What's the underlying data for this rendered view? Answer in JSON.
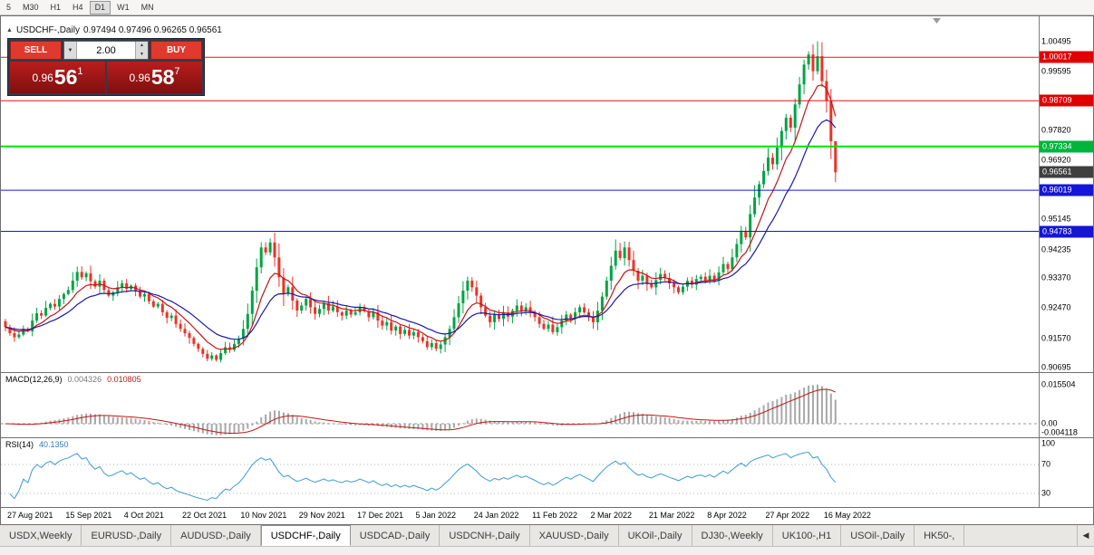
{
  "toolbar": {
    "periods": [
      "5",
      "M30",
      "H1",
      "H4",
      "D1",
      "W1",
      "MN"
    ],
    "active": "D1"
  },
  "chart": {
    "marker_icon": "▲",
    "symbol_period": "USDCHF-,Daily",
    "ohlc": "0.97494 0.97496 0.96265 0.96561"
  },
  "trade_panel": {
    "sell_label": "SELL",
    "buy_label": "BUY",
    "volume": "2.00",
    "dropdown_icon": "▼",
    "spin_up_icon": "▲",
    "spin_down_icon": "▼",
    "sell_price": {
      "base": "0.96",
      "pips": "56",
      "sup": "1"
    },
    "buy_price": {
      "base": "0.96",
      "pips": "58",
      "sup": "7"
    }
  },
  "colors": {
    "bull": "#00A443",
    "bear": "#EA3327",
    "ma_fast": "#C41414",
    "ma_slow": "#1A1AA6",
    "macd_hist": "#A8A8A8",
    "macd_signal": "#C41414",
    "rsi_line": "#3E9AD5"
  },
  "chart_data": {
    "type": "candlestick",
    "symbol": "USDCHF",
    "timeframe": "Daily",
    "title": "USDCHF-,Daily",
    "last_candle": {
      "open": 0.97494,
      "high": 0.97496,
      "low": 0.96265,
      "close": 0.96561
    },
    "current_price": 0.96561,
    "price_range": [
      0.9055,
      1.0125
    ],
    "closes": [
      0.919,
      0.9172,
      0.916,
      0.9168,
      0.9185,
      0.9178,
      0.921,
      0.9232,
      0.9225,
      0.9248,
      0.926,
      0.9252,
      0.9275,
      0.929,
      0.9302,
      0.933,
      0.9356,
      0.934,
      0.9352,
      0.9328,
      0.9312,
      0.933,
      0.9302,
      0.9285,
      0.9295,
      0.931,
      0.9322,
      0.9305,
      0.9315,
      0.9298,
      0.9282,
      0.929,
      0.9268,
      0.9252,
      0.926,
      0.9235,
      0.9218,
      0.9225,
      0.92,
      0.9185,
      0.9172,
      0.9158,
      0.914,
      0.9125,
      0.911,
      0.9095,
      0.9105,
      0.9092,
      0.9112,
      0.913,
      0.9122,
      0.914,
      0.9155,
      0.9185,
      0.923,
      0.93,
      0.937,
      0.943,
      0.9415,
      0.9445,
      0.94,
      0.934,
      0.929,
      0.931,
      0.927,
      0.924,
      0.9255,
      0.9275,
      0.925,
      0.923,
      0.9245,
      0.9262,
      0.924,
      0.9252,
      0.9235,
      0.9225,
      0.924,
      0.9228,
      0.9235,
      0.925,
      0.9238,
      0.922,
      0.9235,
      0.921,
      0.9195,
      0.9205,
      0.918,
      0.9192,
      0.917,
      0.9182,
      0.9165,
      0.9175,
      0.916,
      0.9148,
      0.913,
      0.9142,
      0.9125,
      0.9138,
      0.916,
      0.9185,
      0.922,
      0.9262,
      0.93,
      0.933,
      0.931,
      0.9285,
      0.925,
      0.9225,
      0.9205,
      0.9228,
      0.9215,
      0.9235,
      0.9222,
      0.924,
      0.9255,
      0.9238,
      0.925,
      0.9235,
      0.922,
      0.92,
      0.9185,
      0.9198,
      0.9175,
      0.919,
      0.921,
      0.9228,
      0.9215,
      0.9235,
      0.925,
      0.9235,
      0.922,
      0.9205,
      0.924,
      0.9282,
      0.933,
      0.9375,
      0.942,
      0.9398,
      0.943,
      0.9392,
      0.936,
      0.933,
      0.9345,
      0.932,
      0.931,
      0.9332,
      0.935,
      0.9338,
      0.9322,
      0.931,
      0.9295,
      0.9312,
      0.933,
      0.9318,
      0.9335,
      0.9342,
      0.933,
      0.9345,
      0.933,
      0.9355,
      0.938,
      0.9365,
      0.94,
      0.944,
      0.948,
      0.946,
      0.953,
      0.958,
      0.962,
      0.966,
      0.97,
      0.968,
      0.973,
      0.978,
      0.982,
      0.979,
      0.986,
      0.992,
      0.998,
      1.001,
      0.996,
      1.0005,
      0.993,
      0.987,
      0.97494,
      0.96561
    ],
    "high_overrides": {
      "59": 0.9457,
      "138": 0.9448,
      "181": 1.00495
    },
    "low_overrides": {
      "47": 0.9086
    },
    "x_labels": [
      "27 Aug 2021",
      "15 Sep 2021",
      "4 Oct 2021",
      "22 Oct 2021",
      "10 Nov 2021",
      "29 Nov 2021",
      "17 Dec 2021",
      "5 Jan 2022",
      "24 Jan 2022",
      "11 Feb 2022",
      "2 Mar 2022",
      "21 Mar 2022",
      "8 Apr 2022",
      "27 Apr 2022",
      "16 May 2022"
    ],
    "y_axis_labels": [
      {
        "price": 1.00495,
        "label": "1.00495"
      },
      {
        "price": 1.00017,
        "label": "1.00017",
        "box": "#E00000"
      },
      {
        "price": 0.99595,
        "label": "0.99595"
      },
      {
        "price": 0.98709,
        "label": "0.98709",
        "box": "#E00000"
      },
      {
        "price": 0.9782,
        "label": "0.97820"
      },
      {
        "price": 0.97334,
        "label": "0.97334",
        "box": "#00B43C"
      },
      {
        "price": 0.9692,
        "label": "0.96920"
      },
      {
        "price": 0.96561,
        "label": "0.96561",
        "box": "#3F3F3F"
      },
      {
        "price": 0.96019,
        "label": "0.96019",
        "box": "#1515D6"
      },
      {
        "price": 0.95145,
        "label": "0.95145"
      },
      {
        "price": 0.94783,
        "label": "0.94783",
        "box": "#1515D6"
      },
      {
        "price": 0.94235,
        "label": "0.94235"
      },
      {
        "price": 0.9337,
        "label": "0.93370"
      },
      {
        "price": 0.9247,
        "label": "0.92470"
      },
      {
        "price": 0.9157,
        "label": "0.91570"
      },
      {
        "price": 0.90695,
        "label": "0.90695"
      }
    ],
    "hlines": [
      {
        "price": 1.00017,
        "color": "#F01414",
        "width": 1
      },
      {
        "price": 0.98709,
        "color": "#F01414",
        "width": 1
      },
      {
        "price": 0.97334,
        "color": "#00E400",
        "width": 2
      },
      {
        "price": 0.96019,
        "color": "#1414E6",
        "width": 1
      },
      {
        "price": 0.94783,
        "color": "#1414E6",
        "width": 1
      }
    ],
    "indicators": [
      {
        "id": "macd",
        "label": "MACD(12,26,9)",
        "values": [
          {
            "text": "0.004326",
            "color": "#7a7a7a"
          },
          {
            "text": "0.010805",
            "color": "#b22222"
          }
        ],
        "axis": [
          {
            "v": 0.015504,
            "t": "0.015504"
          },
          {
            "v": 0,
            "t": "0.00"
          },
          {
            "v": -0.004118,
            "t": "-0.004118"
          }
        ]
      },
      {
        "id": "rsi",
        "label": "RSI(14)",
        "values": [
          {
            "text": "40.1350",
            "color": "#2b7bbf"
          }
        ],
        "axis": [
          {
            "v": 100,
            "t": "100"
          },
          {
            "v": 70,
            "t": "70"
          },
          {
            "v": 30,
            "t": "30"
          }
        ],
        "levels": [
          70,
          30
        ]
      }
    ]
  },
  "tabs_bar": {
    "scroll_left_icon": "◀",
    "tabs": [
      {
        "label": "USDX,Weekly",
        "active": false
      },
      {
        "label": "EURUSD-,Daily",
        "active": false
      },
      {
        "label": "AUDUSD-,Daily",
        "active": false
      },
      {
        "label": "USDCHF-,Daily",
        "active": true
      },
      {
        "label": "USDCAD-,Daily",
        "active": false
      },
      {
        "label": "USDCNH-,Daily",
        "active": false
      },
      {
        "label": "XAUUSD-,Daily",
        "active": false
      },
      {
        "label": "UKOil-,Daily",
        "active": false
      },
      {
        "label": "DJ30-,Weekly",
        "active": false
      },
      {
        "label": "UK100-,H1",
        "active": false
      },
      {
        "label": "USOil-,Daily",
        "active": false
      },
      {
        "label": "HK50-,",
        "active": false
      }
    ]
  }
}
